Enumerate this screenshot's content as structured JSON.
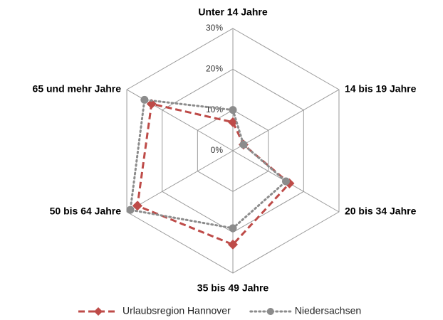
{
  "chart_data": {
    "type": "radar",
    "categories": [
      "Unter 14 Jahre",
      "14 bis 19 Jahre",
      "20 bis 34 Jahre",
      "35 bis 49 Jahre",
      "50 bis 64 Jahre",
      "65 und mehr Jahre"
    ],
    "series": [
      {
        "name": "Urlaubsregion Hannover",
        "color": "#be4b48",
        "values": [
          7,
          3,
          16,
          23,
          27,
          23
        ]
      },
      {
        "name": "Niedersachsen",
        "color": "#8c8c8c",
        "values": [
          10,
          3,
          15,
          19,
          29,
          25
        ]
      }
    ],
    "rlim": [
      0,
      30
    ],
    "rticks": [
      {
        "value": 0,
        "label": "0%"
      },
      {
        "value": 10,
        "label": "10%"
      },
      {
        "value": 20,
        "label": "20%"
      },
      {
        "value": 30,
        "label": "30%"
      }
    ],
    "grid": true,
    "legend": "bottom"
  }
}
